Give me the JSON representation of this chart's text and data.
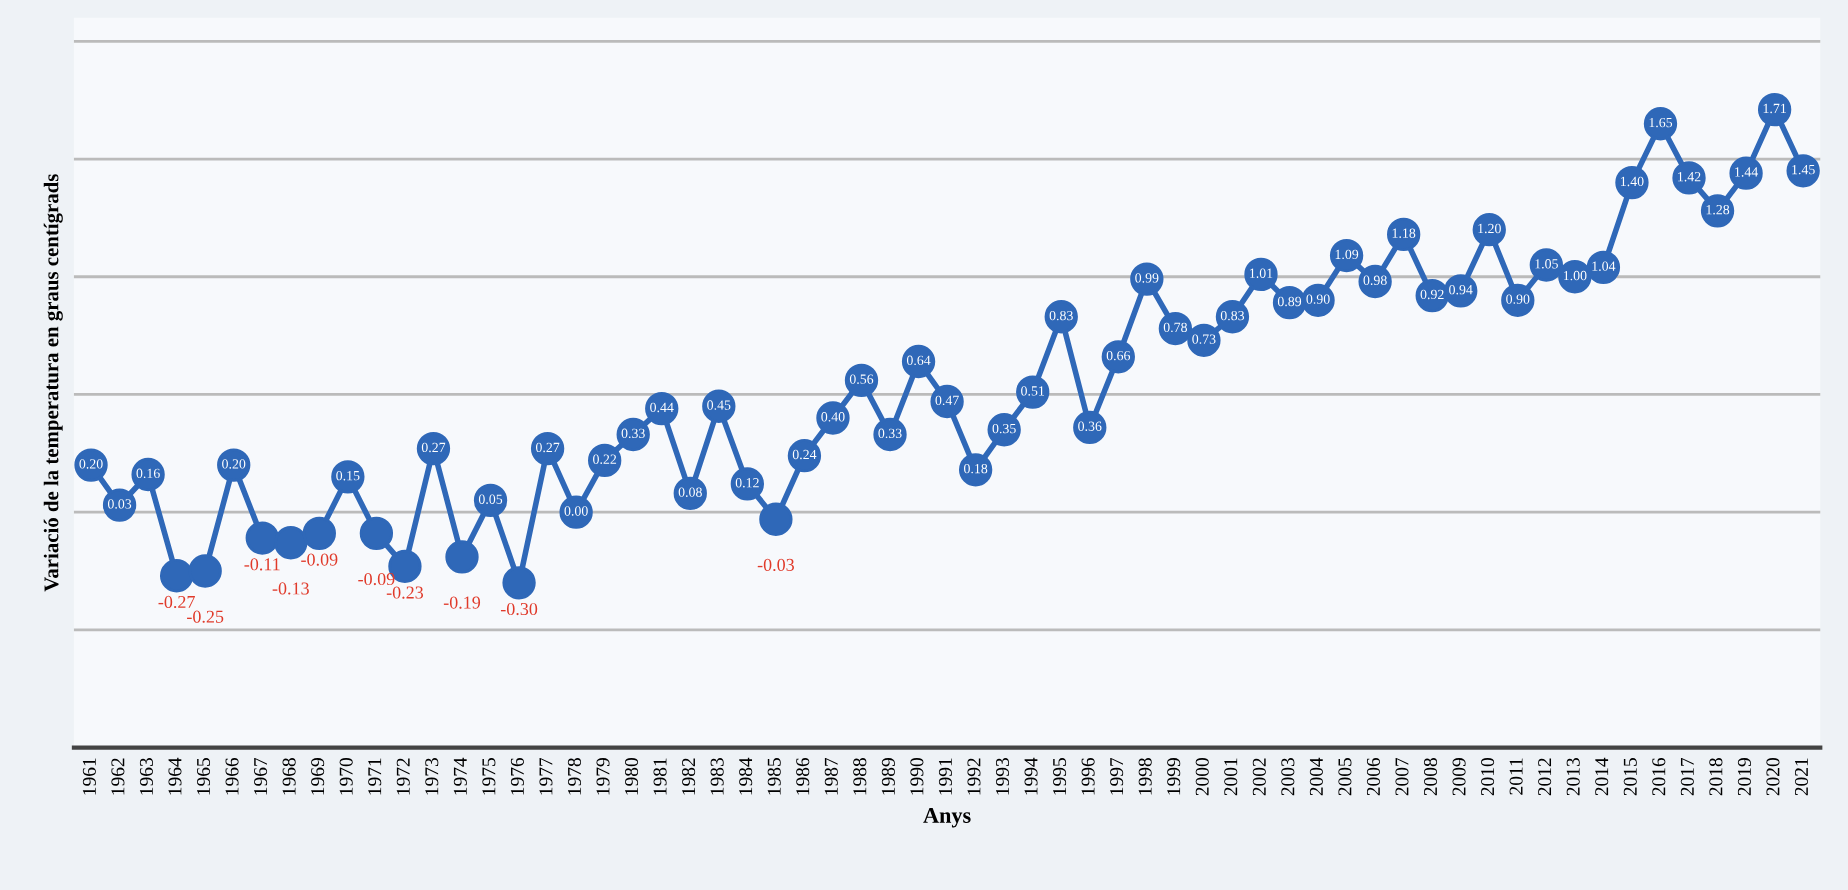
{
  "chart_data": {
    "type": "line",
    "xlabel": "Anys",
    "ylabel": "Variació de la temperatura en graus centígrads",
    "categories": [
      "1961",
      "1962",
      "1963",
      "1964",
      "1965",
      "1966",
      "1967",
      "1968",
      "1969",
      "1970",
      "1971",
      "1972",
      "1973",
      "1974",
      "1975",
      "1976",
      "1977",
      "1978",
      "1979",
      "1980",
      "1981",
      "1982",
      "1983",
      "1984",
      "1985",
      "1986",
      "1987",
      "1988",
      "1989",
      "1990",
      "1991",
      "1992",
      "1993",
      "1994",
      "1995",
      "1996",
      "1997",
      "1998",
      "1999",
      "2000",
      "2001",
      "2002",
      "2003",
      "2004",
      "2005",
      "2006",
      "2007",
      "2008",
      "2009",
      "2010",
      "2011",
      "2012",
      "2013",
      "2014",
      "2015",
      "2016",
      "2017",
      "2018",
      "2019",
      "2020",
      "2021"
    ],
    "series": [
      {
        "color": "#2f68b8",
        "values": [
          0.2,
          0.03,
          0.16,
          -0.27,
          -0.25,
          0.2,
          -0.11,
          -0.13,
          -0.09,
          0.15,
          -0.09,
          -0.23,
          0.27,
          -0.19,
          0.05,
          -0.3,
          0.27,
          0.0,
          0.22,
          0.33,
          0.44,
          0.08,
          0.45,
          0.12,
          -0.03,
          0.24,
          0.4,
          0.56,
          0.33,
          0.64,
          0.47,
          0.18,
          0.35,
          0.51,
          0.83,
          0.36,
          0.66,
          0.99,
          0.78,
          0.73,
          0.83,
          1.01,
          0.89,
          0.9,
          1.09,
          0.98,
          1.18,
          0.92,
          0.94,
          1.2,
          0.9,
          1.05,
          1.0,
          1.04,
          1.4,
          1.65,
          1.42,
          1.28,
          1.44,
          1.71,
          1.45
        ],
        "value_labels": [
          "0.20",
          "0.03",
          "0.16",
          "-0.27",
          "-0.25",
          "0.20",
          "-0.11",
          "-0.13",
          "-0.09",
          "0.15",
          "-0.09",
          "-0.23",
          "0.27",
          "-0.19",
          "0.05",
          "-0.30",
          "0.27",
          "0.00",
          "0.22",
          "0.33",
          "0.44",
          "0.08",
          "0.45",
          "0.12",
          "-0.03",
          "0.24",
          "0.40",
          "0.56",
          "0.33",
          "0.64",
          "0.47",
          "0.18",
          "0.35",
          "0.51",
          "0.83",
          "0.36",
          "0.66",
          "0.99",
          "0.78",
          "0.73",
          "0.83",
          "1.01",
          "0.89",
          "0.90",
          "1.09",
          "0.98",
          "1.18",
          "0.92",
          "0.94",
          "1.20",
          "0.90",
          "1.05",
          "1.00",
          "1.04",
          "1.40",
          "1.65",
          "1.42",
          "1.28",
          "1.44",
          "1.71",
          "1.45"
        ]
      }
    ],
    "ylim": [
      -1.0,
      2.1
    ],
    "yticks": [
      {
        "value": -1.0,
        "label": null
      },
      {
        "value": -0.5,
        "label": null
      },
      {
        "value": 0.0,
        "label": null
      },
      {
        "value": 0.5,
        "label": null
      },
      {
        "value": 1.0,
        "label": null
      },
      {
        "value": 1.5,
        "label": null
      },
      {
        "value": 2.0,
        "label": null
      }
    ],
    "tick_labels": "x",
    "grid": "y",
    "marker": "circle",
    "line_style": "solid"
  }
}
